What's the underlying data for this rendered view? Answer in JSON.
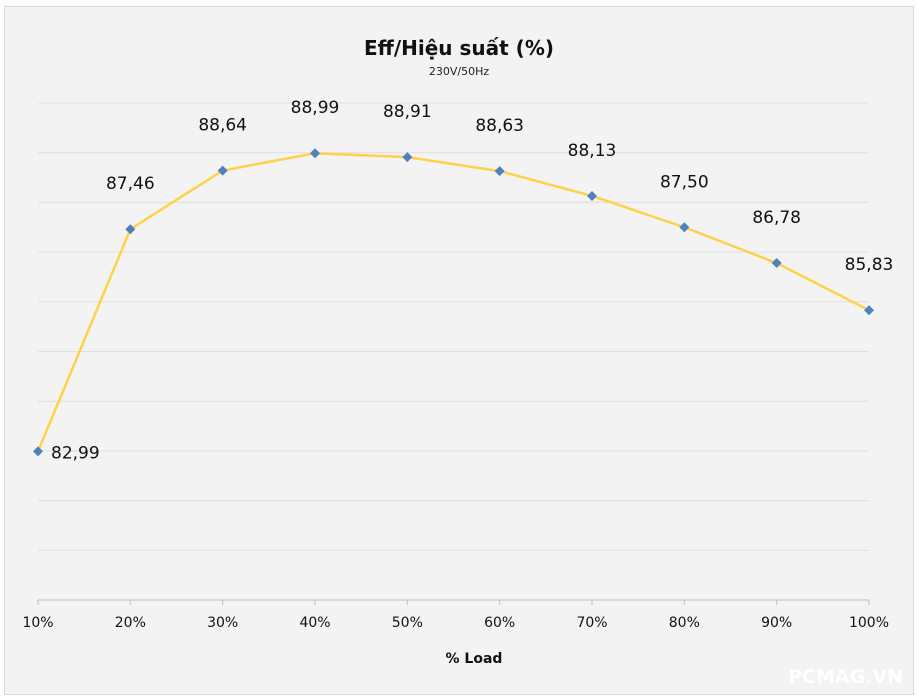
{
  "chart_data": {
    "type": "line",
    "title": "Eff/Hiệu suất (%)",
    "subtitle": "230V/50Hz",
    "xlabel": "% Load",
    "ylabel": "",
    "categories": [
      "10%",
      "20%",
      "30%",
      "40%",
      "50%",
      "60%",
      "70%",
      "80%",
      "90%",
      "100%"
    ],
    "series": [
      {
        "values": [
          82.99,
          87.46,
          88.64,
          88.99,
          88.91,
          88.63,
          88.13,
          87.5,
          86.78,
          85.83
        ],
        "labels": [
          "82,99",
          "87,46",
          "88,64",
          "88,99",
          "88,91",
          "88,63",
          "88,13",
          "87,50",
          "86,78",
          "85,83"
        ],
        "line_color": "#ffd24a",
        "marker_color": "#4f81bd",
        "marker": "diamond"
      }
    ],
    "ylim": [
      80,
      90
    ],
    "grid": true,
    "legend": "none"
  },
  "watermark": "PCMAG.VN"
}
